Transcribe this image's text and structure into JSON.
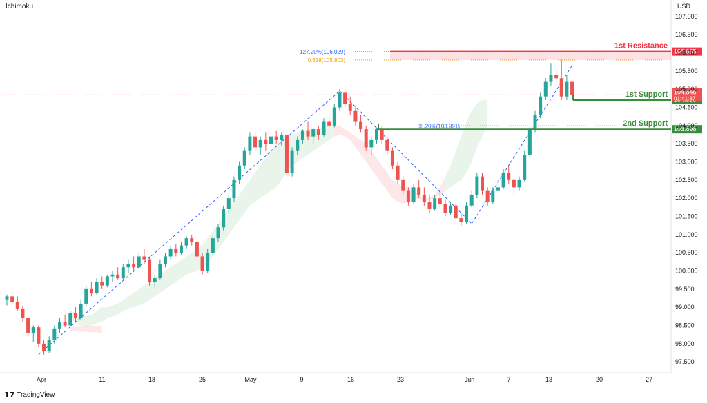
{
  "indicator_label": "Ichimoku",
  "currency": "USD",
  "brand": "TradingView",
  "chart_data": {
    "type": "candlestick",
    "ylim": [
      97.2,
      107.3
    ],
    "price_ticks": [
      "97.500",
      "98.000",
      "98.500",
      "99.000",
      "99.500",
      "100.000",
      "100.500",
      "101.000",
      "101.500",
      "102.000",
      "102.500",
      "103.000",
      "103.500",
      "104.000",
      "104.500",
      "105.000",
      "105.500",
      "106.000",
      "106.500",
      "107.000"
    ],
    "date_ticks": [
      "Apr",
      "11",
      "18",
      "25",
      "May",
      "9",
      "16",
      "23",
      "Jun",
      "7",
      "13",
      "20",
      "27"
    ],
    "candles": [
      [
        99.2,
        99.35,
        99.05,
        99.3
      ],
      [
        99.3,
        99.4,
        99.1,
        99.15
      ],
      [
        99.15,
        99.3,
        98.9,
        98.95
      ],
      [
        98.95,
        99.05,
        98.6,
        98.7
      ],
      [
        98.7,
        98.75,
        98.2,
        98.3
      ],
      [
        98.3,
        98.5,
        98.05,
        98.45
      ],
      [
        98.45,
        98.5,
        97.9,
        98.0
      ],
      [
        98.0,
        98.1,
        97.7,
        97.8
      ],
      [
        97.8,
        98.2,
        97.75,
        98.1
      ],
      [
        98.1,
        98.5,
        98.0,
        98.4
      ],
      [
        98.4,
        98.7,
        98.3,
        98.6
      ],
      [
        98.6,
        98.8,
        98.45,
        98.5
      ],
      [
        98.5,
        98.9,
        98.45,
        98.85
      ],
      [
        98.85,
        99.0,
        98.6,
        98.7
      ],
      [
        98.7,
        99.2,
        98.65,
        99.1
      ],
      [
        99.1,
        99.6,
        99.0,
        99.5
      ],
      [
        99.5,
        99.7,
        99.3,
        99.4
      ],
      [
        99.4,
        99.8,
        99.35,
        99.7
      ],
      [
        99.7,
        99.85,
        99.5,
        99.6
      ],
      [
        99.6,
        99.9,
        99.55,
        99.85
      ],
      [
        99.85,
        100.0,
        99.7,
        99.9
      ],
      [
        99.9,
        100.1,
        99.75,
        99.8
      ],
      [
        99.8,
        100.2,
        99.75,
        100.1
      ],
      [
        100.1,
        100.3,
        99.95,
        100.2
      ],
      [
        100.2,
        100.4,
        100.0,
        100.1
      ],
      [
        100.1,
        100.5,
        100.05,
        100.4
      ],
      [
        100.4,
        100.6,
        100.2,
        100.3
      ],
      [
        100.3,
        100.4,
        99.6,
        99.7
      ],
      [
        99.7,
        99.9,
        99.55,
        99.8
      ],
      [
        99.8,
        100.3,
        99.75,
        100.2
      ],
      [
        100.2,
        100.5,
        100.1,
        100.4
      ],
      [
        100.4,
        100.7,
        100.3,
        100.6
      ],
      [
        100.6,
        100.75,
        100.4,
        100.5
      ],
      [
        100.5,
        100.8,
        100.45,
        100.7
      ],
      [
        100.7,
        100.95,
        100.6,
        100.9
      ],
      [
        100.9,
        101.0,
        100.7,
        100.8
      ],
      [
        100.8,
        100.85,
        100.3,
        100.4
      ],
      [
        100.4,
        100.5,
        99.9,
        100.0
      ],
      [
        100.0,
        100.6,
        99.95,
        100.5
      ],
      [
        100.5,
        101.0,
        100.45,
        100.9
      ],
      [
        100.9,
        101.3,
        100.8,
        101.2
      ],
      [
        101.2,
        101.8,
        101.1,
        101.7
      ],
      [
        101.7,
        102.1,
        101.6,
        102.0
      ],
      [
        102.0,
        102.6,
        101.9,
        102.5
      ],
      [
        102.5,
        103.0,
        102.4,
        102.9
      ],
      [
        102.9,
        103.4,
        102.8,
        103.3
      ],
      [
        103.3,
        103.8,
        103.2,
        103.7
      ],
      [
        103.7,
        103.9,
        103.3,
        103.4
      ],
      [
        103.4,
        103.7,
        103.2,
        103.6
      ],
      [
        103.6,
        103.8,
        103.3,
        103.5
      ],
      [
        103.5,
        103.8,
        103.4,
        103.7
      ],
      [
        103.7,
        103.85,
        103.5,
        103.6
      ],
      [
        103.6,
        103.8,
        103.45,
        103.75
      ],
      [
        103.75,
        103.8,
        102.5,
        102.7
      ],
      [
        102.7,
        103.4,
        102.6,
        103.3
      ],
      [
        103.3,
        103.7,
        103.2,
        103.6
      ],
      [
        103.6,
        103.9,
        103.5,
        103.85
      ],
      [
        103.85,
        104.1,
        103.6,
        103.7
      ],
      [
        103.7,
        103.95,
        103.5,
        103.9
      ],
      [
        103.9,
        104.0,
        103.6,
        103.75
      ],
      [
        103.75,
        104.2,
        103.7,
        104.1
      ],
      [
        104.1,
        104.3,
        103.9,
        104.0
      ],
      [
        104.0,
        104.6,
        103.95,
        104.5
      ],
      [
        104.5,
        105.0,
        104.4,
        104.9
      ],
      [
        104.9,
        105.0,
        104.5,
        104.6
      ],
      [
        104.6,
        104.8,
        104.3,
        104.4
      ],
      [
        104.4,
        104.5,
        104.0,
        104.1
      ],
      [
        104.1,
        104.3,
        103.8,
        103.9
      ],
      [
        103.9,
        104.0,
        103.3,
        103.4
      ],
      [
        103.4,
        103.7,
        103.2,
        103.6
      ],
      [
        103.6,
        103.95,
        103.5,
        103.9
      ],
      [
        103.9,
        104.0,
        103.5,
        103.6
      ],
      [
        103.6,
        103.7,
        103.2,
        103.3
      ],
      [
        103.3,
        103.4,
        102.8,
        102.9
      ],
      [
        102.9,
        103.0,
        102.4,
        102.5
      ],
      [
        102.5,
        102.6,
        102.1,
        102.2
      ],
      [
        102.2,
        102.3,
        101.8,
        101.9
      ],
      [
        101.9,
        102.4,
        101.85,
        102.3
      ],
      [
        102.3,
        102.5,
        102.0,
        102.1
      ],
      [
        102.1,
        102.3,
        101.8,
        101.9
      ],
      [
        101.9,
        102.1,
        101.6,
        101.7
      ],
      [
        101.7,
        102.1,
        101.65,
        102.0
      ],
      [
        102.0,
        102.2,
        101.75,
        101.85
      ],
      [
        101.85,
        101.95,
        101.5,
        101.6
      ],
      [
        101.6,
        101.9,
        101.55,
        101.8
      ],
      [
        101.8,
        101.85,
        101.4,
        101.45
      ],
      [
        101.45,
        101.6,
        101.25,
        101.35
      ],
      [
        101.35,
        101.9,
        101.3,
        101.8
      ],
      [
        101.8,
        102.2,
        101.75,
        102.1
      ],
      [
        102.1,
        102.7,
        102.0,
        102.6
      ],
      [
        102.6,
        102.7,
        102.1,
        102.2
      ],
      [
        102.2,
        102.3,
        101.8,
        101.9
      ],
      [
        101.9,
        102.3,
        101.85,
        102.2
      ],
      [
        102.2,
        102.5,
        102.0,
        102.3
      ],
      [
        102.3,
        102.8,
        102.25,
        102.7
      ],
      [
        102.7,
        102.9,
        102.4,
        102.5
      ],
      [
        102.5,
        102.6,
        102.1,
        102.3
      ],
      [
        102.3,
        102.6,
        102.2,
        102.5
      ],
      [
        102.5,
        103.3,
        102.45,
        103.2
      ],
      [
        103.2,
        104.0,
        103.1,
        103.9
      ],
      [
        103.9,
        104.4,
        103.8,
        104.3
      ],
      [
        104.3,
        104.9,
        104.2,
        104.8
      ],
      [
        104.8,
        105.3,
        104.7,
        105.2
      ],
      [
        105.2,
        105.7,
        105.1,
        105.4
      ],
      [
        105.4,
        105.6,
        105.1,
        105.3
      ],
      [
        105.3,
        105.8,
        104.7,
        104.8
      ],
      [
        104.8,
        105.4,
        104.7,
        105.2
      ],
      [
        105.2,
        105.3,
        104.8,
        104.85
      ]
    ],
    "cloud": [
      [
        98.9,
        98.7
      ],
      [
        98.85,
        98.6
      ],
      [
        98.8,
        98.5
      ],
      [
        98.75,
        98.45
      ],
      [
        98.8,
        98.5
      ],
      [
        98.9,
        98.55
      ],
      [
        99.0,
        98.6
      ],
      [
        99.0,
        98.7
      ],
      [
        99.05,
        98.75
      ],
      [
        99.1,
        98.8
      ],
      [
        99.2,
        98.9
      ],
      [
        99.3,
        98.95
      ],
      [
        99.4,
        99.0
      ],
      [
        99.5,
        99.05
      ],
      [
        99.6,
        99.1
      ],
      [
        99.7,
        99.2
      ],
      [
        99.8,
        99.3
      ],
      [
        99.9,
        99.4
      ],
      [
        100.0,
        99.5
      ],
      [
        100.1,
        99.6
      ],
      [
        100.2,
        99.7
      ],
      [
        100.3,
        99.8
      ],
      [
        100.4,
        99.9
      ],
      [
        100.5,
        99.95
      ],
      [
        100.6,
        100.0
      ],
      [
        100.7,
        100.1
      ],
      [
        100.9,
        100.2
      ],
      [
        101.1,
        100.4
      ],
      [
        101.3,
        100.6
      ],
      [
        101.5,
        100.8
      ],
      [
        101.7,
        101.0
      ],
      [
        101.9,
        101.2
      ],
      [
        102.1,
        101.4
      ],
      [
        102.3,
        101.6
      ],
      [
        102.5,
        101.8
      ],
      [
        102.7,
        101.9
      ],
      [
        102.9,
        102.0
      ],
      [
        103.1,
        102.1
      ],
      [
        103.3,
        102.2
      ],
      [
        103.5,
        102.3
      ],
      [
        103.6,
        102.5
      ],
      [
        103.7,
        102.7
      ],
      [
        103.75,
        102.9
      ],
      [
        103.8,
        103.0
      ],
      [
        103.85,
        103.1
      ],
      [
        103.9,
        103.2
      ],
      [
        103.9,
        103.3
      ],
      [
        103.9,
        103.4
      ],
      [
        103.95,
        103.5
      ],
      [
        104.0,
        103.6
      ],
      [
        104.0,
        103.7
      ],
      [
        104.0,
        103.75
      ],
      [
        103.9,
        103.7
      ],
      [
        103.8,
        103.6
      ],
      [
        103.7,
        103.4
      ],
      [
        103.6,
        103.2
      ],
      [
        103.5,
        103.0
      ],
      [
        103.3,
        102.8
      ],
      [
        103.1,
        102.6
      ],
      [
        102.9,
        102.4
      ],
      [
        102.7,
        102.2
      ],
      [
        102.5,
        102.0
      ],
      [
        102.4,
        101.9
      ],
      [
        102.3,
        101.85
      ],
      [
        102.3,
        101.9
      ],
      [
        102.2,
        101.95
      ],
      [
        102.1,
        102.0
      ],
      [
        102.0,
        101.9
      ],
      [
        102.0,
        101.95
      ],
      [
        102.1,
        102.0
      ],
      [
        102.3,
        102.1
      ],
      [
        102.6,
        102.2
      ],
      [
        102.9,
        102.3
      ],
      [
        103.3,
        102.4
      ],
      [
        103.7,
        102.5
      ],
      [
        104.1,
        102.7
      ],
      [
        104.4,
        103.0
      ],
      [
        104.6,
        103.4
      ],
      [
        104.7,
        103.7
      ],
      [
        104.7,
        104.0
      ]
    ],
    "zigzags": [
      [
        [
          6,
          97.7
        ],
        [
          63,
          104.95
        ]
      ],
      [
        [
          63,
          104.95
        ],
        [
          88,
          101.3
        ]
      ],
      [
        [
          88,
          101.3
        ],
        [
          107,
          105.65
        ]
      ]
    ],
    "last_price": 104.846,
    "levels": [
      {
        "label": "1st Resistance",
        "value": 106.035,
        "tag": "106.035",
        "color": "#f23645"
      },
      {
        "label": "1st Support",
        "value": 104.698,
        "tag": "104.698",
        "color": "#388e3c"
      },
      {
        "label": "2nd Support",
        "value": 103.898,
        "tag": "103.898",
        "color": "#388e3c"
      }
    ],
    "fib_labels": [
      {
        "text": "127.20%(106.029)",
        "value": 106.029,
        "color": "#2962ff"
      },
      {
        "text": "0.618(105.803)",
        "value": 105.803,
        "color": "#f59e0b"
      },
      {
        "text": "38.20%(103.991)",
        "value": 103.991,
        "color": "#2962ff"
      }
    ],
    "price_tag": {
      "price": "104.846",
      "countdown": "01:41:37"
    }
  }
}
